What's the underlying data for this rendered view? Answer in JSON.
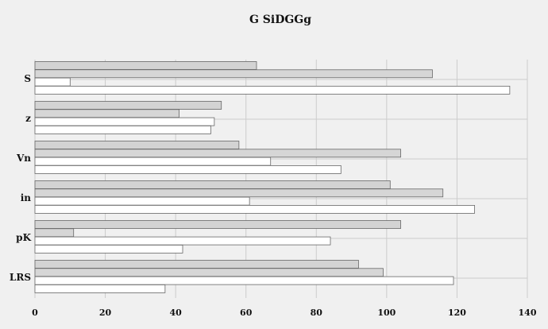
{
  "chart_data": {
    "type": "bar",
    "orientation": "horizontal",
    "title": "G SiDGGg",
    "xlabel": "",
    "ylabel": "",
    "categories": [
      "S",
      "z",
      "Vn",
      "in",
      "pK",
      "LRS"
    ],
    "series": [
      {
        "color": "#d3d3d3",
        "values": [
          63,
          53,
          58,
          101,
          104,
          92
        ]
      },
      {
        "color": "#d6d6d6",
        "values": [
          113,
          41,
          104,
          116,
          11,
          99
        ]
      },
      {
        "color": "#ffffff",
        "values": [
          10,
          51,
          67,
          61,
          84,
          119
        ]
      },
      {
        "color": "#ffffff",
        "values": [
          135,
          50,
          87,
          125,
          42,
          37
        ]
      }
    ],
    "xlim": [
      0,
      140
    ],
    "xticks": [
      "0",
      "20",
      "40",
      "60",
      "80",
      "100",
      "120",
      "140"
    ],
    "grid": true,
    "legend": "none",
    "colors": {
      "background": "#f0f0f0",
      "grid": "#cccccc",
      "bar_stroke": "#666666"
    }
  }
}
